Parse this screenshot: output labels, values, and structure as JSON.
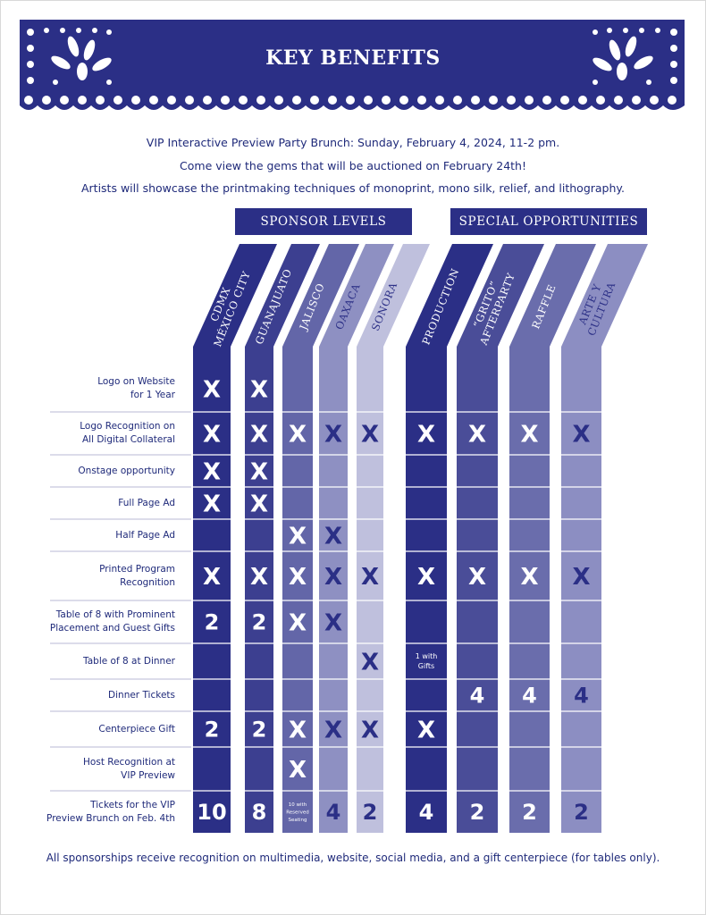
{
  "title": "KEY BENEFITS",
  "intro": {
    "line1": "VIP Interactive Preview Party Brunch: Sunday, February 4, 2024, 11-2 pm.",
    "line2": "Come view the gems that will be auctioned on February 24th!",
    "line3": "Artists will showcase the printmaking techniques of monoprint, mono silk, relief, and lithography."
  },
  "groups": {
    "sponsor": "SPONSOR LEVELS",
    "special": "SPECIAL OPPORTUNITIES"
  },
  "columns": [
    {
      "name": [
        "CDMX",
        "MÉXICO CITY"
      ],
      "color": "#2b2f86",
      "mark": "#ffffff"
    },
    {
      "name": [
        "GUANAJUATO"
      ],
      "color": "#3c3f90",
      "mark": "#ffffff"
    },
    {
      "name": [
        "JALISCO"
      ],
      "color": "#6366a8",
      "mark": "#ffffff"
    },
    {
      "name": [
        "OAXACA"
      ],
      "color": "#8e90c2",
      "mark": "#2b2f86"
    },
    {
      "name": [
        "SONORA"
      ],
      "color": "#bfc0dd",
      "mark": "#2b2f86"
    },
    {
      "name": [
        "PRODUCTION"
      ],
      "color": "#2b2f86",
      "mark": "#ffffff"
    },
    {
      "name": [
        "“GRITO”",
        "AFTERPARTY"
      ],
      "color": "#4a4d98",
      "mark": "#ffffff"
    },
    {
      "name": [
        "RAFFLE"
      ],
      "color": "#6a6dac",
      "mark": "#ffffff"
    },
    {
      "name": [
        "ARTE Y",
        "CULTURA"
      ],
      "color": "#8c8ec2",
      "mark": "#2b2f86"
    }
  ],
  "rows": [
    {
      "label": [
        "Logo on Website",
        "for 1 Year"
      ],
      "cells": [
        "X",
        "X",
        "",
        "",
        "",
        "",
        "",
        "",
        ""
      ]
    },
    {
      "label": [
        "Logo Recognition on",
        "All Digital Collateral"
      ],
      "cells": [
        "X",
        "X",
        "X",
        "X",
        "X",
        "X",
        "X",
        "X",
        "X"
      ]
    },
    {
      "label": [
        "Onstage opportunity"
      ],
      "cells": [
        "X",
        "X",
        "",
        "",
        "",
        "",
        "",
        "",
        ""
      ]
    },
    {
      "label": [
        "Full Page Ad"
      ],
      "cells": [
        "X",
        "X",
        "",
        "",
        "",
        "",
        "",
        "",
        ""
      ]
    },
    {
      "label": [
        "Half Page Ad"
      ],
      "cells": [
        "",
        "",
        "X",
        "X",
        "",
        "",
        "",
        "",
        ""
      ]
    },
    {
      "label": [
        "Printed Program",
        "Recognition"
      ],
      "cells": [
        "X",
        "X",
        "X",
        "X",
        "X",
        "X",
        "X",
        "X",
        "X"
      ]
    },
    {
      "label": [
        "Table of 8 with Prominent",
        "Placement and Guest Gifts"
      ],
      "cells": [
        "2",
        "2",
        "X",
        "X",
        "",
        "",
        "",
        "",
        ""
      ]
    },
    {
      "label": [
        "Table of 8 at Dinner"
      ],
      "cells": [
        "",
        "",
        "",
        "",
        "X",
        "1 with|Gifts",
        "",
        "",
        ""
      ]
    },
    {
      "label": [
        "Dinner Tickets"
      ],
      "cells": [
        "",
        "",
        "",
        "",
        "",
        "",
        "4",
        "4",
        "4"
      ]
    },
    {
      "label": [
        "Centerpiece Gift"
      ],
      "cells": [
        "2",
        "2",
        "X",
        "X",
        "X",
        "X",
        "",
        "",
        ""
      ]
    },
    {
      "label": [
        "Host Recognition at",
        "VIP Preview"
      ],
      "cells": [
        "",
        "",
        "X",
        "",
        "",
        "",
        "",
        "",
        ""
      ]
    },
    {
      "label": [
        "Tickets for the VIP",
        "Preview Brunch on Feb. 4th"
      ],
      "cells": [
        "10",
        "8",
        "10 with|Reserved|Seating",
        "4",
        "2",
        "4",
        "2",
        "2",
        "2"
      ]
    }
  ],
  "footer": "All sponsorships receive recognition on multimedia, website, social media, and a gift centerpiece (for tables only)."
}
